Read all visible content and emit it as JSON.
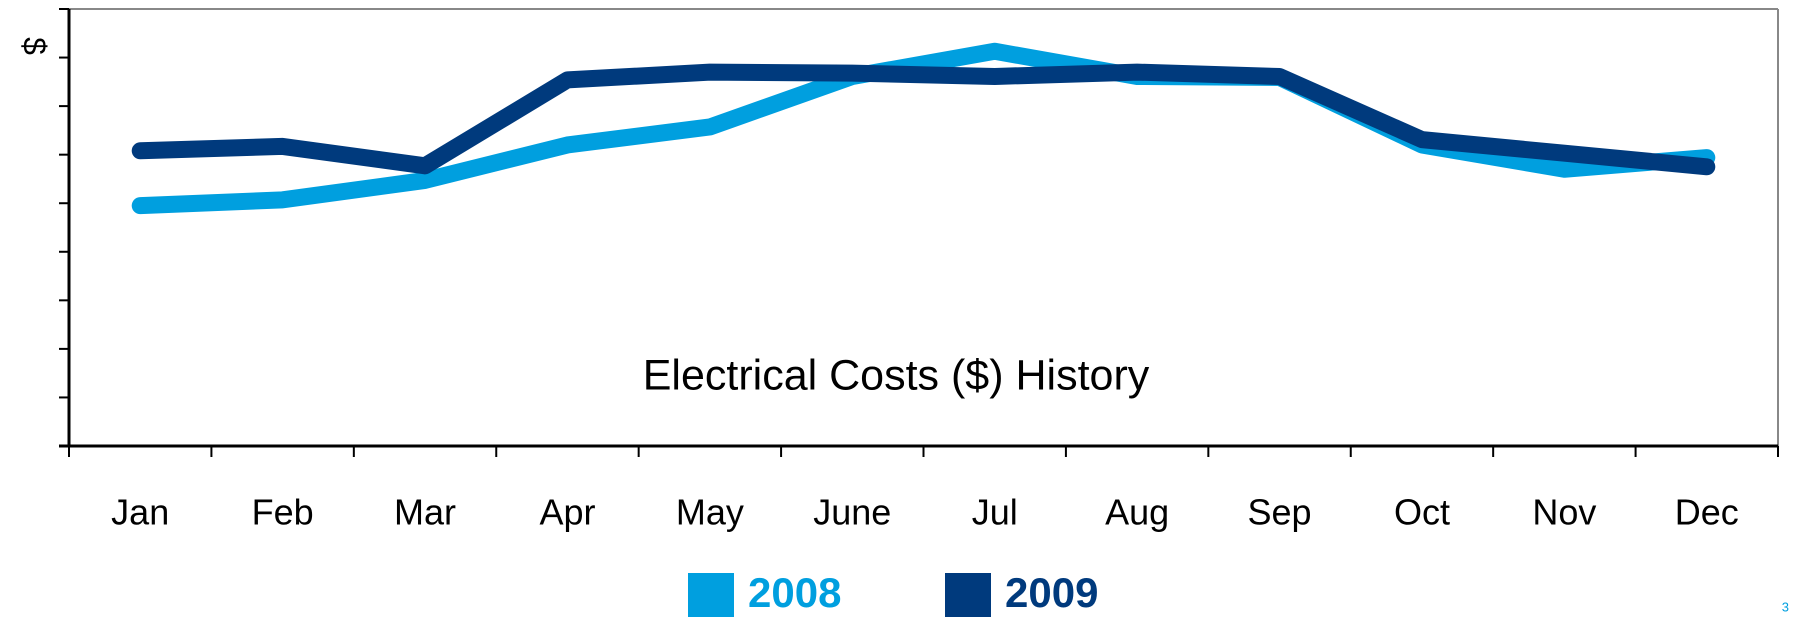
{
  "chart_data": {
    "type": "line",
    "title": "Electrical Costs ($) History",
    "y_label": "$",
    "categories": [
      "Jan",
      "Feb",
      "Mar",
      "Apr",
      "May",
      "June",
      "Jul",
      "Aug",
      "Sep",
      "Oct",
      "Nov",
      "Dec"
    ],
    "series": [
      {
        "name": "2008",
        "color": "#009fdf",
        "values": [
          4.95,
          5.07,
          5.47,
          6.2,
          6.57,
          7.61,
          8.13,
          7.61,
          7.59,
          6.2,
          5.7,
          5.94
        ]
      },
      {
        "name": "2009",
        "color": "#003a7d",
        "values": [
          6.08,
          6.17,
          5.77,
          7.54,
          7.7,
          7.68,
          7.61,
          7.7,
          7.61,
          6.31,
          6.03,
          5.75
        ]
      }
    ],
    "ylim": [
      0,
      9
    ],
    "yticks": [
      0,
      1,
      2,
      3,
      4,
      5,
      6,
      7,
      8,
      9
    ],
    "legend": "bottom",
    "page_number": "3"
  }
}
